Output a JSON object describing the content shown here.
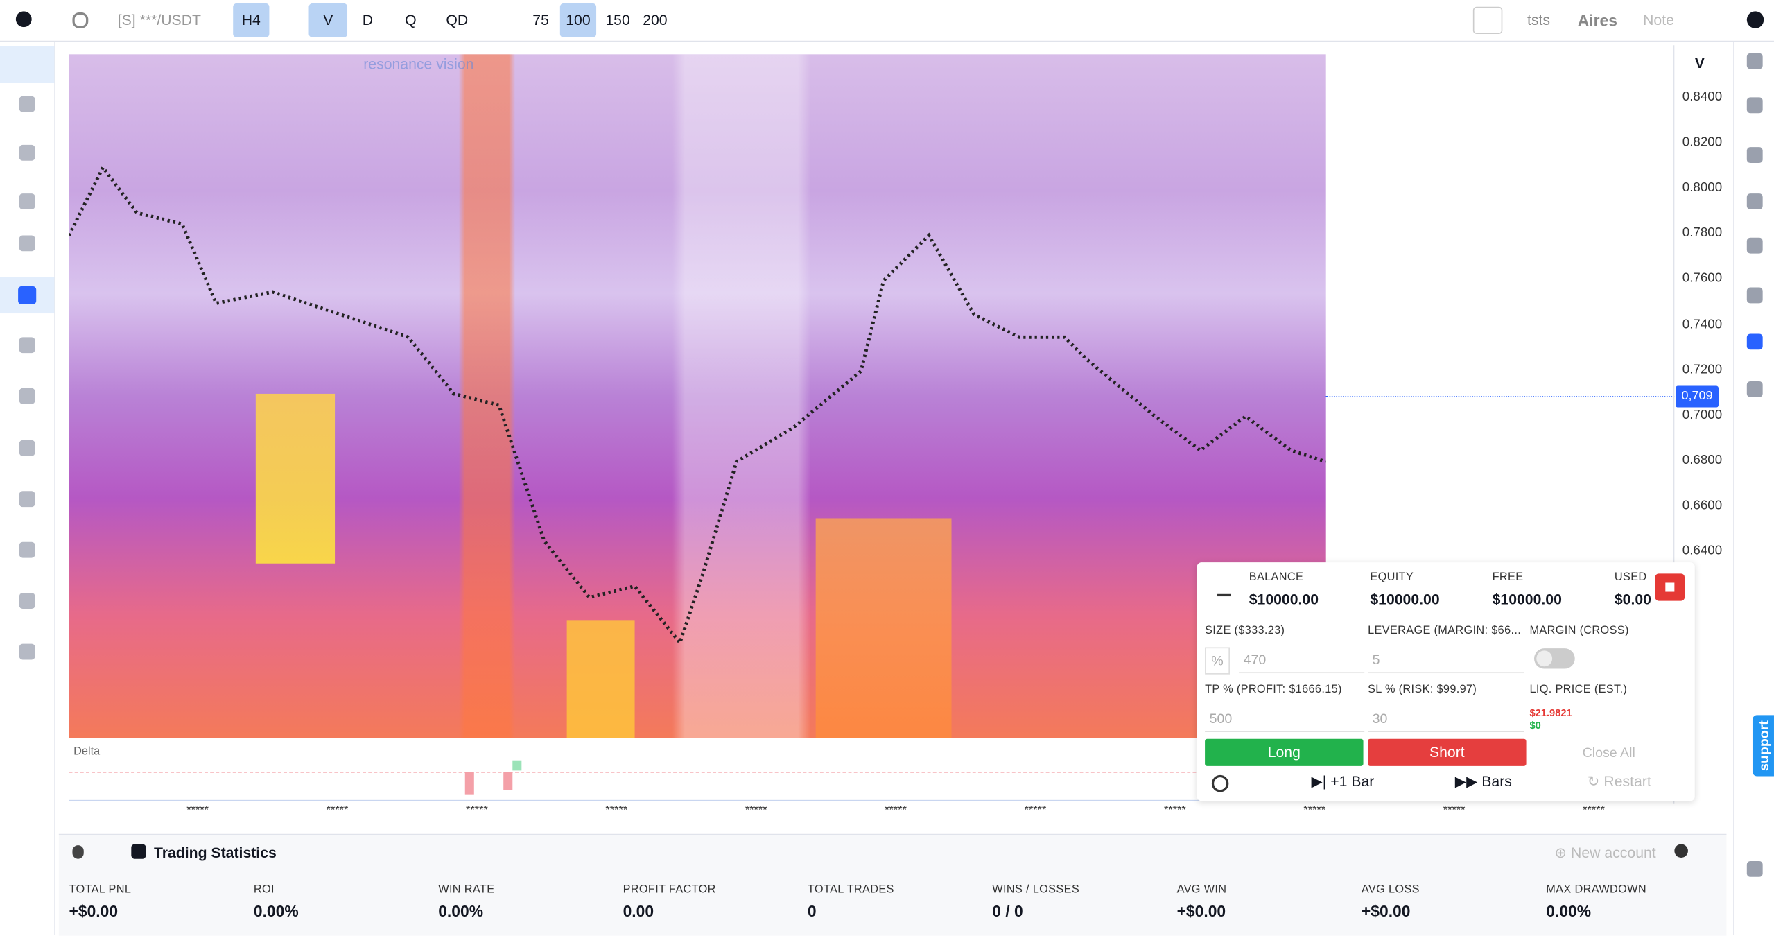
{
  "toolbar": {
    "symbol": "[S] ***/USDT",
    "timeframes": [
      "H4",
      "V",
      "D",
      "Q",
      "QD"
    ],
    "counts": [
      "75",
      "100",
      "150",
      "200"
    ],
    "right": [
      "tsts",
      "Aires",
      "Note"
    ]
  },
  "chart": {
    "watermark": "resonance vision",
    "axis_label": "V",
    "yticks": [
      "0.8400",
      "0.8200",
      "0.8000",
      "0.7800",
      "0.7600",
      "0.7400",
      "0.7200",
      "0.7000",
      "0.6800",
      "0.6600",
      "0.6400"
    ],
    "price_tag": "0,709",
    "indicator": "Delta",
    "xticks": [
      "*****",
      "*****",
      "*****",
      "*****",
      "*****",
      "*****",
      "*****",
      "*****",
      "*****",
      "*****",
      "*****"
    ]
  },
  "trade_panel": {
    "balances": [
      {
        "label": "BALANCE",
        "value": "$10000.00"
      },
      {
        "label": "EQUITY",
        "value": "$10000.00"
      },
      {
        "label": "FREE",
        "value": "$10000.00"
      },
      {
        "label": "USED",
        "value": "$0.00"
      }
    ],
    "size_label": "SIZE ($333.23)",
    "size_unit": "%",
    "size_value": "470",
    "leverage_label": "LEVERAGE (MARGIN: $66...",
    "leverage_value": "5",
    "margin_label": "MARGIN (CROSS)",
    "tp_label": "TP % (PROFIT: $1666.15)",
    "tp_value": "500",
    "sl_label": "SL % (RISK: $99.97)",
    "sl_value": "30",
    "liq_label": "LIQ. PRICE (EST.)",
    "liq_short": "$21.9821",
    "liq_long": "$0",
    "long": "Long",
    "short": "Short",
    "close_all": "Close All",
    "plus_bar": "+1 Bar",
    "bars": "Bars",
    "restart": "Restart"
  },
  "stats": {
    "title": "Trading Statistics",
    "new_account": "New account",
    "items": [
      {
        "label": "TOTAL PNL",
        "value": "+$0.00"
      },
      {
        "label": "ROI",
        "value": "0.00%"
      },
      {
        "label": "WIN RATE",
        "value": "0.00%"
      },
      {
        "label": "PROFIT FACTOR",
        "value": "0.00"
      },
      {
        "label": "TOTAL TRADES",
        "value": "0"
      },
      {
        "label": "WINS / LOSSES",
        "value": "0 / 0"
      },
      {
        "label": "AVG WIN",
        "value": "+$0.00"
      },
      {
        "label": "AVG LOSS",
        "value": "+$0.00"
      },
      {
        "label": "MAX DRAWDOWN",
        "value": "0.00%"
      }
    ]
  },
  "support": "support"
}
